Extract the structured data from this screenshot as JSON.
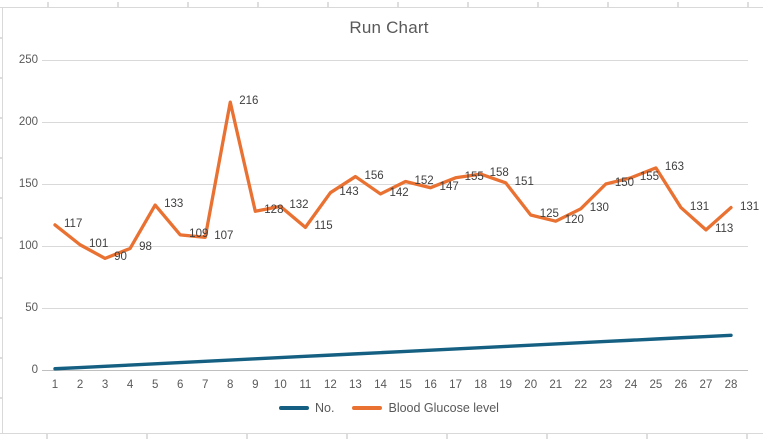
{
  "title": "Run Chart",
  "colors": {
    "no_series": "#156082",
    "glucose_series": "#E97132",
    "gridline": "#d9d9d9",
    "axis_line": "#bfbfbf",
    "axis_text": "#595959",
    "data_label_text": "#3f3f3f",
    "title_text": "#595959"
  },
  "chart_data": {
    "type": "line",
    "title": "Run Chart",
    "x": [
      1,
      2,
      3,
      4,
      5,
      6,
      7,
      8,
      9,
      10,
      11,
      12,
      13,
      14,
      15,
      16,
      17,
      18,
      19,
      20,
      21,
      22,
      23,
      24,
      25,
      26,
      27,
      28
    ],
    "series": [
      {
        "name": "No.",
        "values": [
          1,
          2,
          3,
          4,
          5,
          6,
          7,
          8,
          9,
          10,
          11,
          12,
          13,
          14,
          15,
          16,
          17,
          18,
          19,
          20,
          21,
          22,
          23,
          24,
          25,
          26,
          27,
          28
        ],
        "color_key": "no_series",
        "show_labels": false
      },
      {
        "name": "Blood Glucose level",
        "values": [
          117,
          101,
          90,
          98,
          133,
          109,
          107,
          216,
          128,
          132,
          115,
          143,
          156,
          142,
          152,
          147,
          155,
          158,
          151,
          125,
          120,
          130,
          150,
          155,
          163,
          131,
          113,
          131
        ],
        "color_key": "glucose_series",
        "show_labels": true
      }
    ],
    "ylim": [
      0,
      250
    ],
    "yticks": [
      0,
      50,
      100,
      150,
      200,
      250
    ],
    "grid": true,
    "legend_position": "bottom",
    "xlabel": "",
    "ylabel": ""
  }
}
